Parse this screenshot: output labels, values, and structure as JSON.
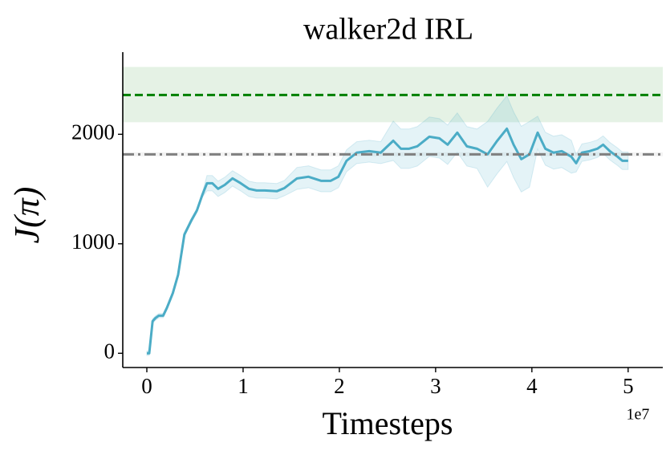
{
  "chart_data": {
    "type": "line",
    "title": "walker2d IRL",
    "xlabel": "Timesteps",
    "ylabel": "J(π)",
    "x_offset_label": "1e7",
    "xlim": [
      -0.25,
      5.36
    ],
    "ylim": [
      -130,
      2750
    ],
    "xticks": [
      0,
      1,
      2,
      3,
      4,
      5
    ],
    "yticks": [
      0,
      1000,
      2000
    ],
    "x": [
      0,
      0.025,
      0.06,
      0.09,
      0.125,
      0.17,
      0.21,
      0.27,
      0.325,
      0.39,
      0.46,
      0.52,
      0.575,
      0.625,
      0.68,
      0.74,
      0.81,
      0.89,
      0.975,
      1.06,
      1.14,
      1.225,
      1.35,
      1.43,
      1.56,
      1.68,
      1.81,
      1.91,
      1.99,
      2.075,
      2.18,
      2.31,
      2.43,
      2.56,
      2.64,
      2.725,
      2.81,
      2.935,
      3.04,
      3.125,
      3.225,
      3.325,
      3.43,
      3.54,
      3.64,
      3.74,
      3.81,
      3.89,
      3.975,
      4.06,
      4.14,
      4.225,
      4.31,
      4.41,
      4.46,
      4.52,
      4.6,
      4.68,
      4.74,
      4.81,
      4.89,
      4.94,
      5.0
    ],
    "series": [
      {
        "color": "#4bacc6",
        "band_color": "#4bacc6",
        "values": [
          0,
          0,
          293,
          322,
          344,
          344,
          418,
          549,
          718,
          1084,
          1209,
          1304,
          1443,
          1553,
          1553,
          1502,
          1538,
          1597,
          1553,
          1502,
          1487,
          1487,
          1480,
          1509,
          1597,
          1612,
          1575,
          1575,
          1612,
          1758,
          1832,
          1846,
          1832,
          1941,
          1868,
          1868,
          1890,
          1978,
          1963,
          1905,
          2015,
          1890,
          1868,
          1817,
          1941,
          2051,
          1905,
          1773,
          1817,
          2015,
          1868,
          1832,
          1846,
          1795,
          1736,
          1832,
          1846,
          1868,
          1905,
          1846,
          1795,
          1758,
          1758
        ],
        "upper": [
          20,
          20,
          313,
          342,
          364,
          364,
          438,
          569,
          738,
          1104,
          1229,
          1324,
          1463,
          1623,
          1623,
          1572,
          1608,
          1667,
          1623,
          1572,
          1557,
          1557,
          1550,
          1579,
          1697,
          1712,
          1675,
          1675,
          1712,
          1858,
          1932,
          1946,
          1932,
          2121,
          2048,
          2048,
          2070,
          2158,
          2143,
          2085,
          2195,
          2070,
          2048,
          2117,
          2241,
          2351,
          2205,
          2073,
          2117,
          2165,
          2018,
          1982,
          1996,
          1945,
          1816,
          1912,
          1926,
          1948,
          1985,
          1926,
          1875,
          1838,
          1838
        ],
        "lower": [
          -20,
          -20,
          273,
          302,
          324,
          324,
          398,
          529,
          698,
          1064,
          1189,
          1284,
          1423,
          1483,
          1483,
          1432,
          1468,
          1527,
          1483,
          1432,
          1417,
          1417,
          1410,
          1439,
          1497,
          1512,
          1475,
          1475,
          1512,
          1658,
          1732,
          1746,
          1732,
          1761,
          1688,
          1688,
          1710,
          1798,
          1783,
          1725,
          1835,
          1710,
          1688,
          1517,
          1641,
          1751,
          1605,
          1473,
          1517,
          1865,
          1718,
          1682,
          1696,
          1645,
          1656,
          1752,
          1766,
          1788,
          1825,
          1766,
          1715,
          1678,
          1678
        ]
      }
    ],
    "reference_lines": [
      {
        "value": 2359,
        "color": "#008000",
        "style": "dashed",
        "band": [
          2110,
          2615
        ]
      },
      {
        "value": 1817,
        "color": "#808080",
        "style": "dashdot",
        "band": [
          1800,
          1835
        ]
      }
    ]
  }
}
